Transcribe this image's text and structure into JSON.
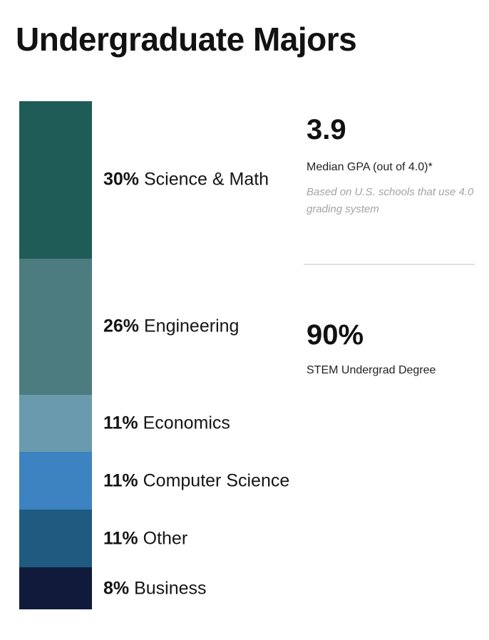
{
  "title": "Undergraduate Majors",
  "chart_data": {
    "type": "bar",
    "title": "Undergraduate Majors",
    "categories": [
      "Science & Math",
      "Engineering",
      "Economics",
      "Computer Science",
      "Other",
      "Business"
    ],
    "values": [
      30,
      26,
      11,
      11,
      11,
      8
    ],
    "value_labels": [
      "30%",
      "26%",
      "11%",
      "11%",
      "11%",
      "8%"
    ],
    "colors": [
      "#1f5c58",
      "#4d7c80",
      "#6a9aad",
      "#3d82c1",
      "#1f5a80",
      "#101b3c"
    ]
  },
  "stats": [
    {
      "value": "3.9",
      "label": "Median GPA (out of 4.0)*",
      "note": "Based on U.S. schools that use 4.0 grading system"
    },
    {
      "value": "90%",
      "label": "STEM Undergrad Degree"
    }
  ]
}
